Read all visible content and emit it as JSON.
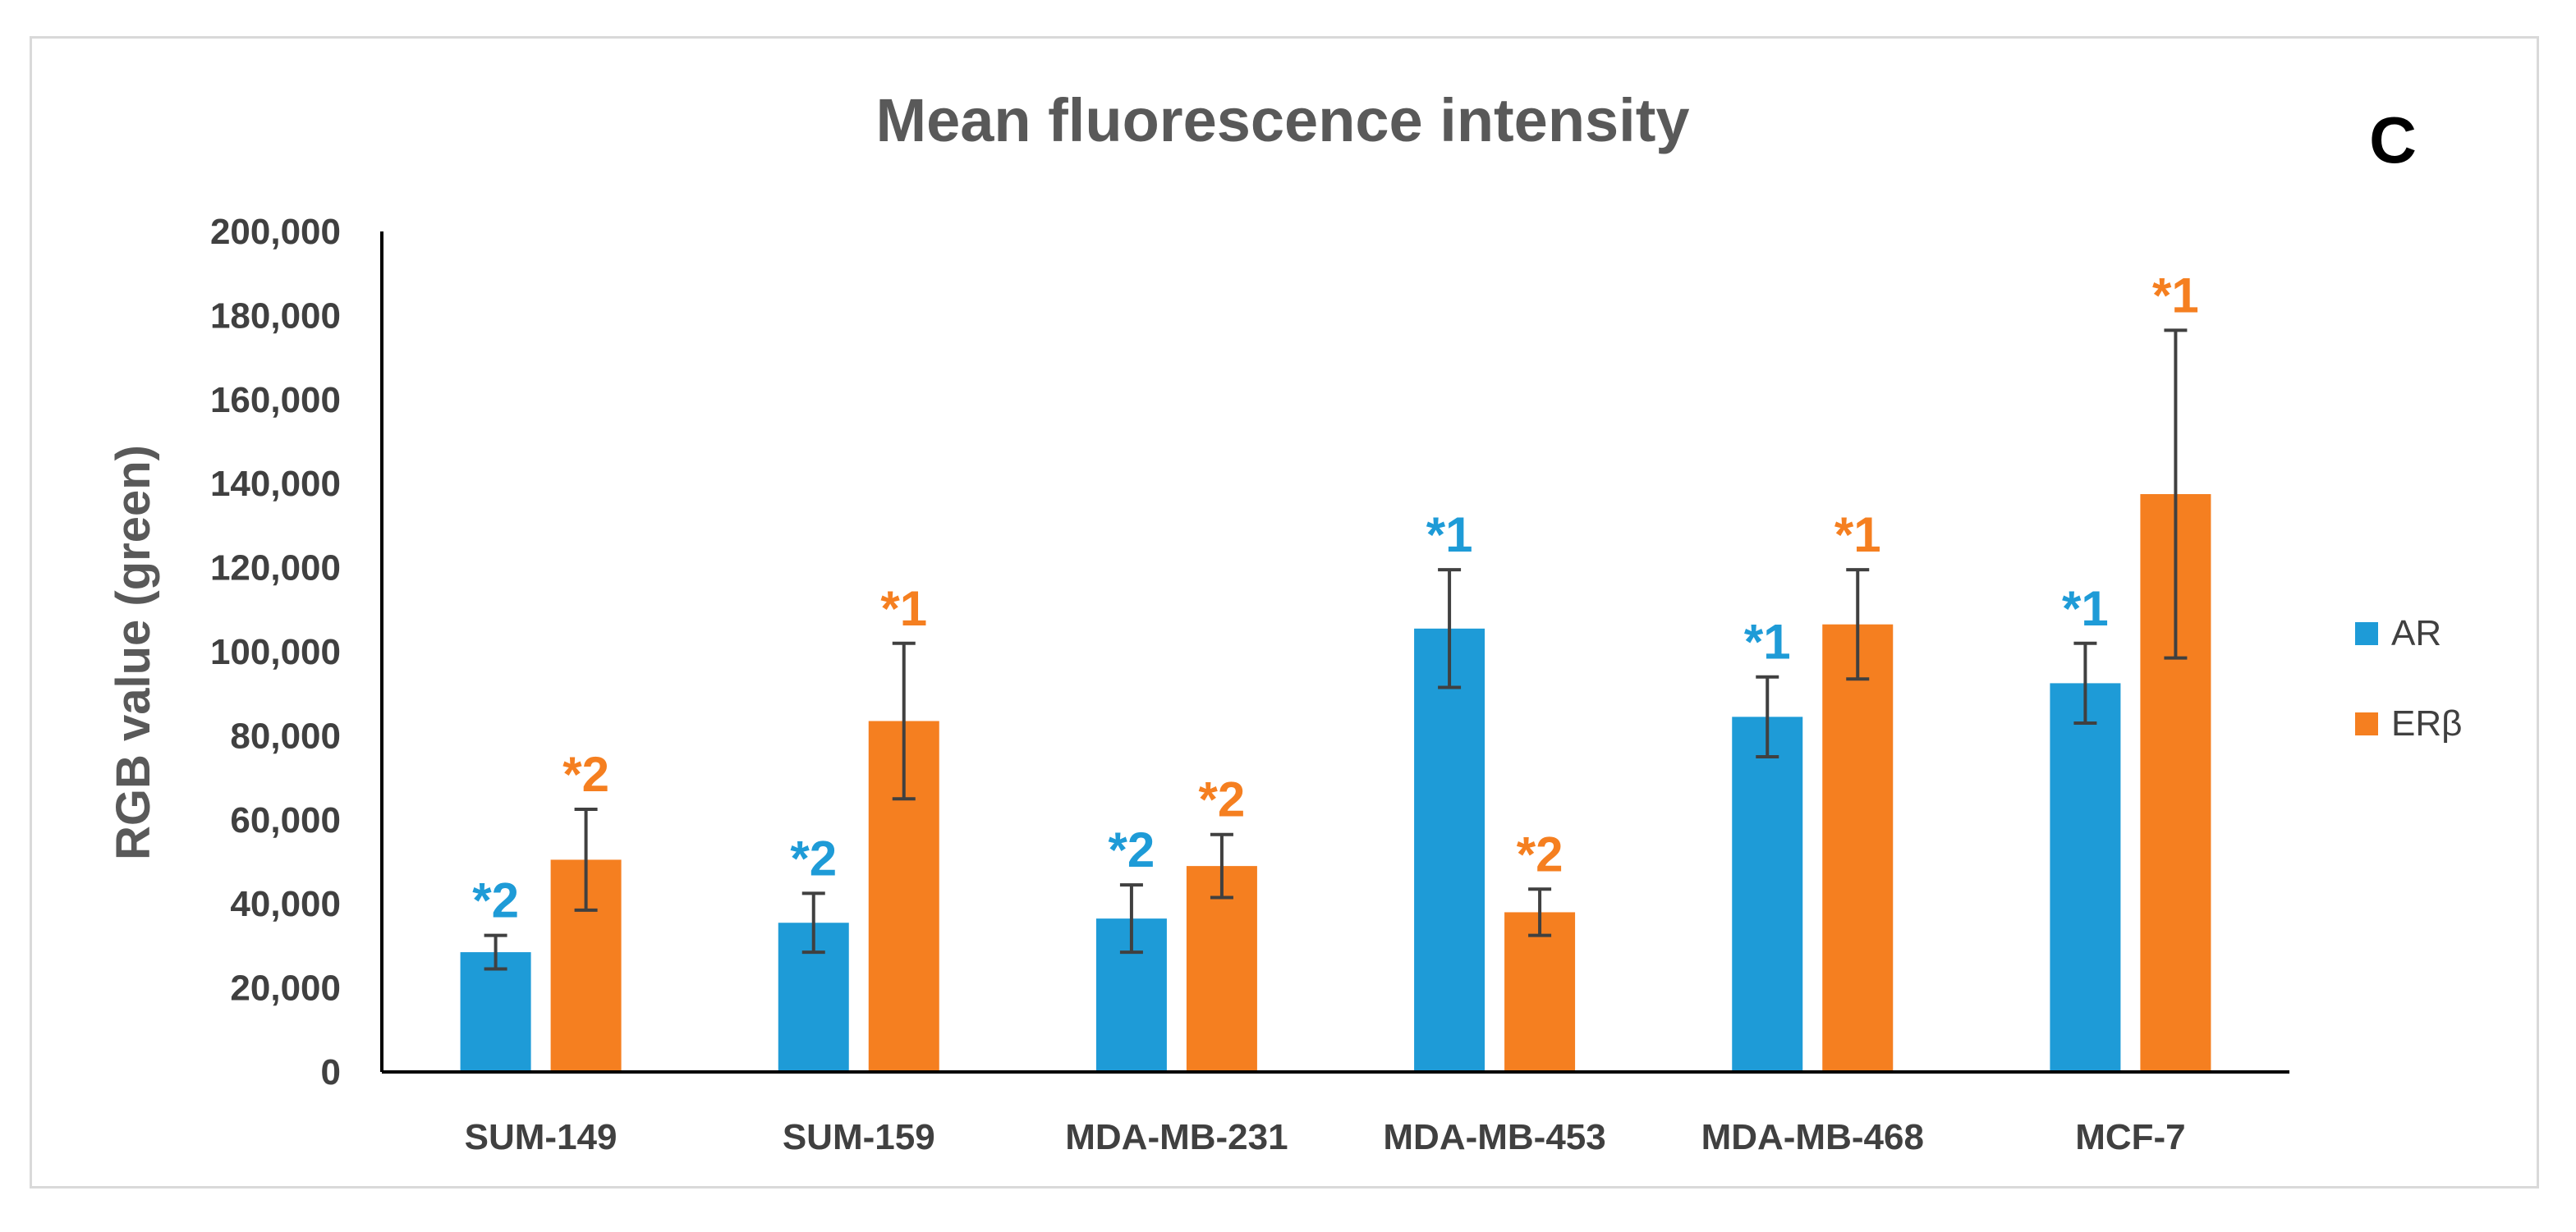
{
  "chart_data": {
    "type": "bar",
    "title": "Mean fluorescence intensity",
    "panel_label": "C",
    "xlabel": "",
    "ylabel": "RGB value (green)",
    "ylim": [
      0,
      200000
    ],
    "yticks": [
      0,
      20000,
      40000,
      60000,
      80000,
      100000,
      120000,
      140000,
      160000,
      180000,
      200000
    ],
    "ytick_labels": [
      "0",
      "20,000",
      "40,000",
      "60,000",
      "80,000",
      "100,000",
      "120,000",
      "140,000",
      "160,000",
      "180,000",
      "200,000"
    ],
    "grid": false,
    "legend_position": "right",
    "categories": [
      "SUM-149",
      "SUM-159",
      "MDA-MB-231",
      "MDA-MB-453",
      "MDA-MB-468",
      "MCF-7"
    ],
    "series": [
      {
        "name": "AR",
        "color": "#1e9bd7",
        "values": [
          28500,
          35500,
          36500,
          105500,
          84500,
          92500
        ],
        "error": [
          4000,
          7000,
          8000,
          14000,
          9500,
          9500
        ],
        "annotations": [
          "*2",
          "*2",
          "*2",
          "*1",
          "*1",
          "*1"
        ]
      },
      {
        "name": "ERβ",
        "color": "#f57f20",
        "values": [
          50500,
          83500,
          49000,
          38000,
          106500,
          137500
        ],
        "error": [
          12000,
          18500,
          7500,
          5500,
          13000,
          39000
        ],
        "annotations": [
          "*2",
          "*1",
          "*2",
          "*2",
          "*1",
          "*1"
        ]
      }
    ]
  }
}
